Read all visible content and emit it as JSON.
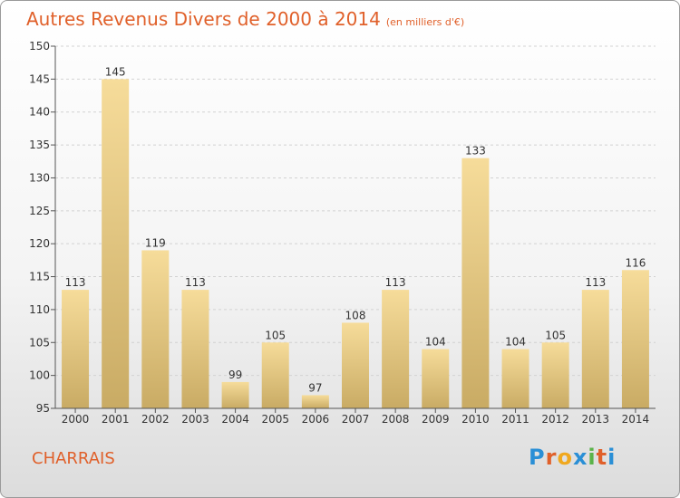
{
  "title": "Autres Revenus Divers de 2000 à 2014",
  "subtitle": "(en milliers d'€)",
  "location": "CHARRAIS",
  "logo_text": "Proxiti",
  "logo_colors": [
    "#2a8fd6",
    "#e0602a",
    "#f0a81e",
    "#2a8fd6",
    "#5bb34a",
    "#e0602a",
    "#2a8fd6"
  ],
  "colors": {
    "title": "#e0602a",
    "bar_light": "#f6dc9a",
    "bar_dark": "#c9ab64"
  },
  "chart_data": {
    "type": "bar",
    "categories": [
      "2000",
      "2001",
      "2002",
      "2003",
      "2004",
      "2005",
      "2006",
      "2007",
      "2008",
      "2009",
      "2010",
      "2011",
      "2012",
      "2013",
      "2014"
    ],
    "values": [
      113,
      145,
      119,
      113,
      99,
      105,
      97,
      108,
      113,
      104,
      133,
      104,
      105,
      113,
      116
    ],
    "ylim": [
      95,
      150
    ],
    "yticks": [
      95,
      100,
      105,
      110,
      115,
      120,
      125,
      130,
      135,
      140,
      145,
      150
    ],
    "grid": "horizontal"
  }
}
